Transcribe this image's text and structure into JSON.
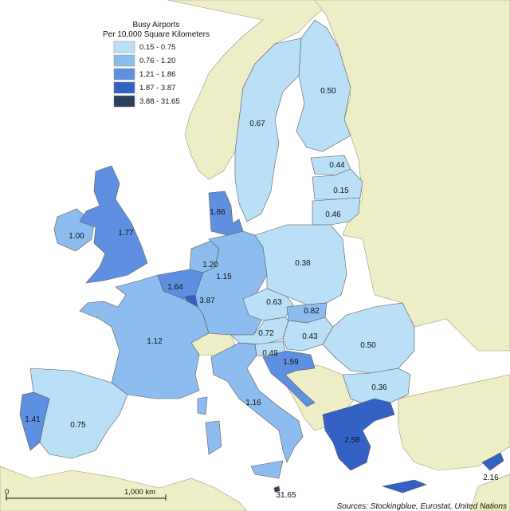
{
  "legend": {
    "title_line1": "Busy Airports",
    "title_line2": "Per 10,000 Square Kilometers",
    "classes": [
      {
        "label": "0.15 - 0.75",
        "color": "#b9e0f7"
      },
      {
        "label": "0.76 - 1.20",
        "color": "#8cbdee"
      },
      {
        "label": "1.21 - 1.86",
        "color": "#5f8fe1"
      },
      {
        "label": "1.87 - 3.87",
        "color": "#3461c5"
      },
      {
        "label": "3.88 - 31.65",
        "color": "#2d3f5f"
      }
    ]
  },
  "colors": {
    "sea": "#ffffff",
    "non_eu_land": "#eeeec6",
    "border": "#5a5a5a"
  },
  "regions": [
    {
      "id": "finland",
      "value": "0.50",
      "color": "#b9e0f7"
    },
    {
      "id": "sweden",
      "value": "0.67",
      "color": "#b9e0f7"
    },
    {
      "id": "estonia",
      "value": "0.44",
      "color": "#b9e0f7"
    },
    {
      "id": "latvia",
      "value": "0.15",
      "color": "#b9e0f7"
    },
    {
      "id": "lithuania",
      "value": "0.46",
      "color": "#b9e0f7"
    },
    {
      "id": "denmark",
      "value": "1.86",
      "color": "#5f8fe1"
    },
    {
      "id": "ireland",
      "value": "1.00",
      "color": "#8cbdee"
    },
    {
      "id": "uk",
      "value": "1.77",
      "color": "#5f8fe1"
    },
    {
      "id": "netherlands",
      "value": "1.20",
      "color": "#8cbdee"
    },
    {
      "id": "belgium",
      "value": "1.64",
      "color": "#5f8fe1"
    },
    {
      "id": "luxembourg",
      "value": "3.87",
      "color": "#3461c5"
    },
    {
      "id": "germany",
      "value": "1.15",
      "color": "#8cbdee"
    },
    {
      "id": "poland",
      "value": "0.38",
      "color": "#b9e0f7"
    },
    {
      "id": "czechia",
      "value": "0.63",
      "color": "#b9e0f7"
    },
    {
      "id": "slovakia",
      "value": "0.82",
      "color": "#8cbdee"
    },
    {
      "id": "austria",
      "value": "0.72",
      "color": "#b9e0f7"
    },
    {
      "id": "hungary",
      "value": "0.43",
      "color": "#b9e0f7"
    },
    {
      "id": "slovenia",
      "value": "0.49",
      "color": "#b9e0f7"
    },
    {
      "id": "croatia",
      "value": "1.59",
      "color": "#5f8fe1"
    },
    {
      "id": "romania",
      "value": "0.50",
      "color": "#b9e0f7"
    },
    {
      "id": "bulgaria",
      "value": "0.36",
      "color": "#b9e0f7"
    },
    {
      "id": "france",
      "value": "1.12",
      "color": "#8cbdee"
    },
    {
      "id": "spain",
      "value": "0.75",
      "color": "#b9e0f7"
    },
    {
      "id": "portugal",
      "value": "1.41",
      "color": "#5f8fe1"
    },
    {
      "id": "italy",
      "value": "1.16",
      "color": "#8cbdee"
    },
    {
      "id": "greece",
      "value": "2.58",
      "color": "#3461c5"
    },
    {
      "id": "cyprus",
      "value": "2.16",
      "color": "#3461c5"
    },
    {
      "id": "malta",
      "value": "31.65",
      "color": "#2d3f5f"
    }
  ],
  "scale_bar": {
    "start_label": "0",
    "end_label": "1,000 km"
  },
  "source": "Sources: Stockingblue, Eurostat, United Nations"
}
